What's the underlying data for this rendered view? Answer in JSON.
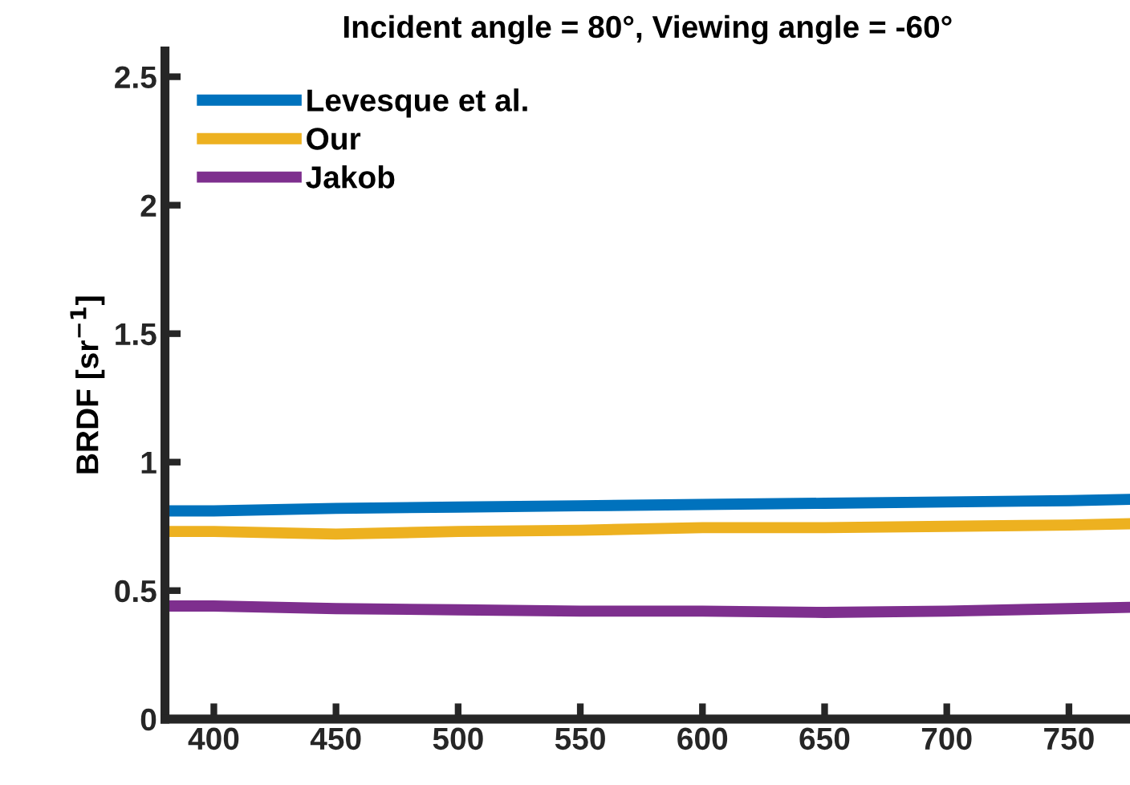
{
  "chart_data": {
    "type": "line",
    "title": "Incident angle = 80°, Viewing angle = -60°",
    "ylabel": "BRDF [sr$^{−1}$]",
    "x": [
      380,
      400,
      450,
      500,
      550,
      600,
      650,
      700,
      750,
      775
    ],
    "series": [
      {
        "name": "Levesque et al.",
        "color": "#0072bd",
        "values": [
          0.81,
          0.81,
          0.82,
          0.825,
          0.83,
          0.835,
          0.84,
          0.845,
          0.85,
          0.855
        ]
      },
      {
        "name": "Our",
        "color": "#edb120",
        "values": [
          0.73,
          0.73,
          0.72,
          0.73,
          0.735,
          0.745,
          0.745,
          0.75,
          0.755,
          0.76
        ]
      },
      {
        "name": "Jakob",
        "color": "#7e2f8e",
        "values": [
          0.44,
          0.44,
          0.43,
          0.425,
          0.42,
          0.42,
          0.415,
          0.42,
          0.43,
          0.435
        ]
      }
    ],
    "xlim": [
      380,
      775
    ],
    "xticks": [
      400,
      450,
      500,
      550,
      600,
      650,
      700,
      750
    ],
    "ylim": [
      0,
      2.6
    ],
    "yticks": [
      0,
      0.5,
      1,
      1.5,
      2,
      2.5
    ],
    "legend": "top left",
    "grid": false
  }
}
